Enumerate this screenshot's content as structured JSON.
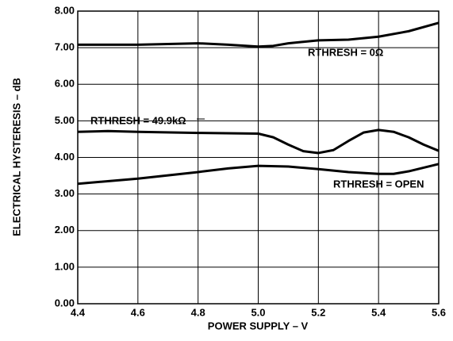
{
  "chart_data": {
    "type": "line",
    "xlabel": "POWER SUPPLY – V",
    "ylabel": "ELECTRICAL HYSTERESIS – dB",
    "xlim": [
      4.4,
      5.6
    ],
    "xticks": [
      4.4,
      4.6,
      4.8,
      {
        "value": 5,
        "label": "5.0"
      },
      5.2,
      5.4,
      5.6
    ],
    "ylim": [
      0,
      8
    ],
    "yticks": [
      {
        "value": 0,
        "label": "0.00"
      },
      {
        "value": 1,
        "label": "1.00"
      },
      {
        "value": 2,
        "label": "2.00"
      },
      {
        "value": 3,
        "label": "3.00"
      },
      {
        "value": 4,
        "label": "4.00"
      },
      {
        "value": 5,
        "label": "5.00"
      },
      {
        "value": 6,
        "label": "6.00"
      },
      {
        "value": 7,
        "label": "7.00"
      },
      {
        "value": 8,
        "label": "8.00"
      }
    ],
    "grid": true,
    "series": [
      {
        "name": "RTHRESH = 0Ω",
        "color": "#000000",
        "x": [
          4.4,
          4.6,
          4.8,
          4.9,
          5.0,
          5.05,
          5.1,
          5.2,
          5.3,
          5.4,
          5.5,
          5.6
        ],
        "values": [
          7.08,
          7.08,
          7.12,
          7.08,
          7.03,
          7.05,
          7.12,
          7.2,
          7.22,
          7.3,
          7.45,
          7.68
        ]
      },
      {
        "name": "RTHRESH = 49.9kΩ",
        "color": "#000000",
        "x": [
          4.4,
          4.5,
          4.6,
          4.8,
          5.0,
          5.05,
          5.1,
          5.15,
          5.2,
          5.25,
          5.3,
          5.35,
          5.4,
          5.45,
          5.5,
          5.55,
          5.6
        ],
        "values": [
          4.7,
          4.72,
          4.7,
          4.67,
          4.65,
          4.55,
          4.35,
          4.17,
          4.12,
          4.2,
          4.45,
          4.68,
          4.75,
          4.7,
          4.55,
          4.35,
          4.18
        ]
      },
      {
        "name": "RTHRESH = OPEN",
        "color": "#000000",
        "x": [
          4.4,
          4.6,
          4.8,
          4.9,
          5.0,
          5.1,
          5.2,
          5.3,
          5.4,
          5.45,
          5.5,
          5.6
        ],
        "values": [
          3.28,
          3.42,
          3.6,
          3.7,
          3.77,
          3.75,
          3.68,
          3.6,
          3.55,
          3.55,
          3.62,
          3.82
        ]
      }
    ]
  }
}
